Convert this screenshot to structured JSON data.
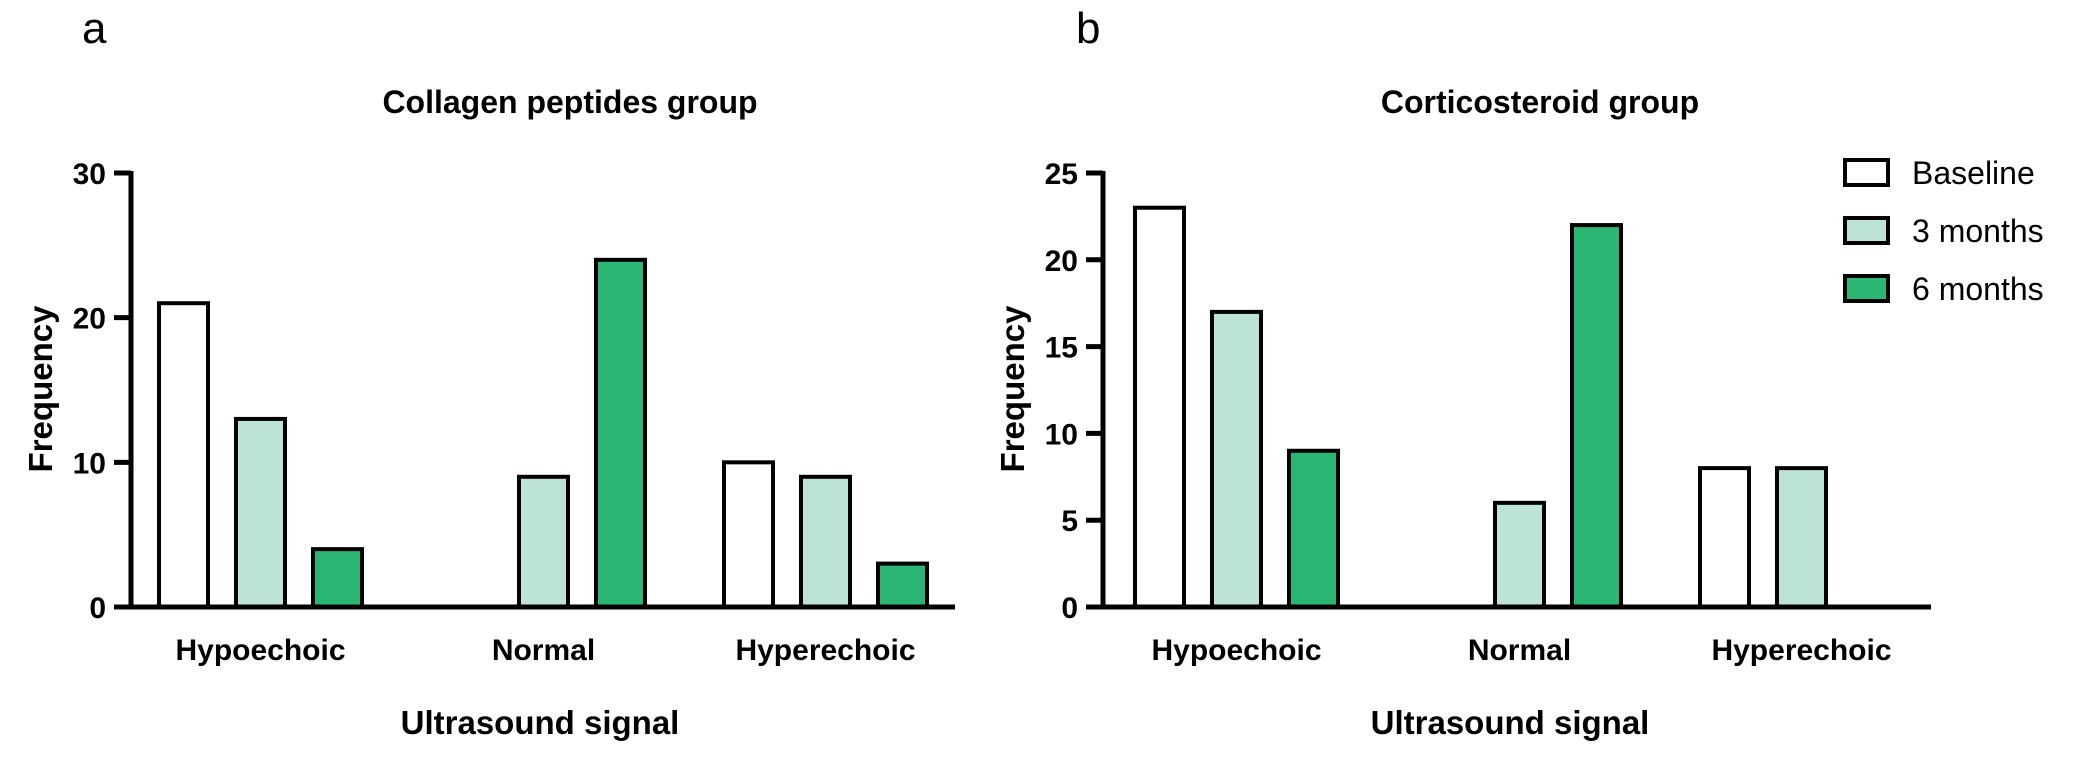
{
  "panels": [
    {
      "letter": "a"
    },
    {
      "letter": "b"
    }
  ],
  "legend": {
    "items": [
      {
        "label": "Baseline",
        "color": "#ffffff"
      },
      {
        "label": "3 months",
        "color": "#bde3d6"
      },
      {
        "label": "6 months",
        "color": "#2bb673"
      }
    ],
    "placement": "top-right"
  },
  "chart_data": [
    {
      "type": "bar",
      "title": "Collagen peptides group",
      "xlabel": "Ultrasound signal",
      "ylabel": "Frequency",
      "categories": [
        "Hypoechoic",
        "Normal",
        "Hyperechoic"
      ],
      "ylim": [
        0,
        30
      ],
      "yticks": [
        0,
        10,
        20,
        30
      ],
      "grid": false,
      "series": [
        {
          "name": "Baseline",
          "color": "#ffffff",
          "values": [
            21,
            0,
            10
          ]
        },
        {
          "name": "3 months",
          "color": "#bde3d6",
          "values": [
            13,
            9,
            9
          ]
        },
        {
          "name": "6 months",
          "color": "#2bb673",
          "values": [
            4,
            24,
            3
          ]
        }
      ]
    },
    {
      "type": "bar",
      "title": "Corticosteroid group",
      "xlabel": "Ultrasound signal",
      "ylabel": "Frequency",
      "categories": [
        "Hypoechoic",
        "Normal",
        "Hyperechoic"
      ],
      "ylim": [
        0,
        25
      ],
      "yticks": [
        0,
        5,
        10,
        15,
        20,
        25
      ],
      "grid": false,
      "series": [
        {
          "name": "Baseline",
          "color": "#ffffff",
          "values": [
            23,
            0,
            8
          ]
        },
        {
          "name": "3 months",
          "color": "#bde3d6",
          "values": [
            17,
            6,
            8
          ]
        },
        {
          "name": "6 months",
          "color": "#2bb673",
          "values": [
            9,
            22,
            0
          ]
        }
      ]
    }
  ]
}
